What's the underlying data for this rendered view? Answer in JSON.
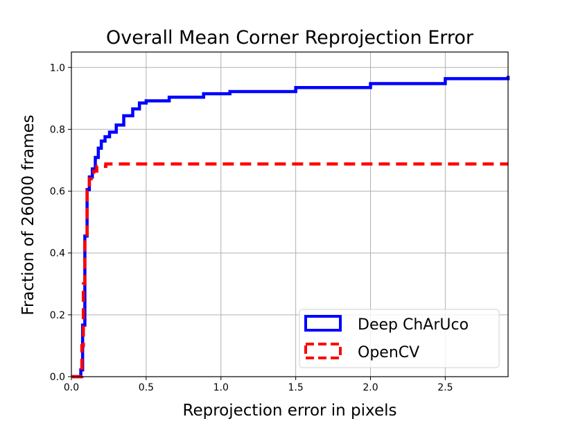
{
  "chart_data": {
    "type": "line",
    "title": "Overall Mean Corner Reprojection Error",
    "xlabel": "Reprojection error in pixels",
    "ylabel": "Fraction of 26000 frames",
    "xlim": [
      0,
      2.92
    ],
    "ylim": [
      0,
      1.05
    ],
    "xticks": [
      0.0,
      0.5,
      1.0,
      1.5,
      2.0,
      2.5
    ],
    "xtick_labels": [
      "0.0",
      "0.5",
      "1.0",
      "1.5",
      "2.0",
      "2.5"
    ],
    "yticks": [
      0.0,
      0.2,
      0.4,
      0.6,
      0.8,
      1.0
    ],
    "ytick_labels": [
      "0.0",
      "0.2",
      "0.4",
      "0.6",
      "0.8",
      "1.0"
    ],
    "grid": true,
    "legend_placement": "lower-right",
    "series": [
      {
        "name": "Deep ChArUco",
        "color": "#0000ff",
        "style": "solid-step",
        "x": [
          0,
          0.063,
          0.075,
          0.09,
          0.105,
          0.12,
          0.14,
          0.16,
          0.18,
          0.2,
          0.225,
          0.255,
          0.3,
          0.35,
          0.41,
          0.455,
          0.5,
          0.654,
          0.884,
          1.06,
          1.5,
          2.0,
          2.5,
          2.92
        ],
        "y": [
          0,
          0.022,
          0.167,
          0.455,
          0.605,
          0.646,
          0.672,
          0.709,
          0.739,
          0.762,
          0.776,
          0.791,
          0.814,
          0.844,
          0.866,
          0.885,
          0.892,
          0.904,
          0.915,
          0.922,
          0.935,
          0.948,
          0.964,
          0.973
        ]
      },
      {
        "name": "OpenCV",
        "color": "#ff0000",
        "style": "dashed-step",
        "x": [
          0,
          0.07,
          0.08,
          0.09,
          0.105,
          0.12,
          0.15,
          0.17,
          0.23,
          2.92
        ],
        "y": [
          0,
          0.1,
          0.3,
          0.45,
          0.6,
          0.64,
          0.665,
          0.68,
          0.688,
          0.688
        ]
      }
    ]
  }
}
